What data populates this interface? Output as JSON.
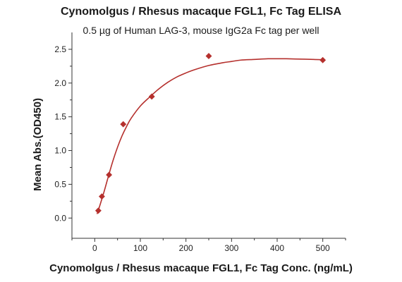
{
  "chart_data": {
    "type": "scatter",
    "title": "Cynomolgus / Rhesus macaque FGL1, Fc Tag ELISA",
    "subtitle": "0.5 µg of Human LAG-3, mouse IgG2a Fc tag per well",
    "xlabel": "Cynomolgus / Rhesus macaque FGL1, Fc Tag Conc. (ng/mL)",
    "ylabel": "Mean Abs.(OD450)",
    "xlim": [
      -50,
      550
    ],
    "ylim": [
      -0.3,
      2.75
    ],
    "xticks": [
      0,
      100,
      200,
      300,
      400,
      500
    ],
    "yticks": [
      0.0,
      0.5,
      1.0,
      1.5,
      2.0,
      2.5
    ],
    "ytick_labels": [
      "0.0",
      "0.5",
      "1.0",
      "1.5",
      "2.0",
      "2.5"
    ],
    "grid": false,
    "colors": {
      "series": "#b5302d"
    },
    "points": [
      {
        "x": 7.8,
        "y": 0.11
      },
      {
        "x": 15.6,
        "y": 0.32
      },
      {
        "x": 31.3,
        "y": 0.64
      },
      {
        "x": 62.5,
        "y": 1.39
      },
      {
        "x": 125,
        "y": 1.8
      },
      {
        "x": 250,
        "y": 2.4
      },
      {
        "x": 500,
        "y": 2.34
      }
    ],
    "fit_curve": {
      "type": "sigmoidal",
      "x": [
        5,
        10,
        20,
        30,
        40,
        50,
        60,
        70,
        80,
        100,
        120,
        140,
        160,
        180,
        200,
        220,
        250,
        280,
        300,
        320,
        350,
        380,
        400,
        420,
        450,
        480,
        500
      ],
      "y": [
        0.06,
        0.16,
        0.38,
        0.62,
        0.85,
        1.05,
        1.22,
        1.36,
        1.48,
        1.66,
        1.79,
        1.91,
        2.01,
        2.09,
        2.15,
        2.2,
        2.26,
        2.3,
        2.32,
        2.34,
        2.35,
        2.36,
        2.36,
        2.36,
        2.355,
        2.35,
        2.345
      ]
    }
  }
}
